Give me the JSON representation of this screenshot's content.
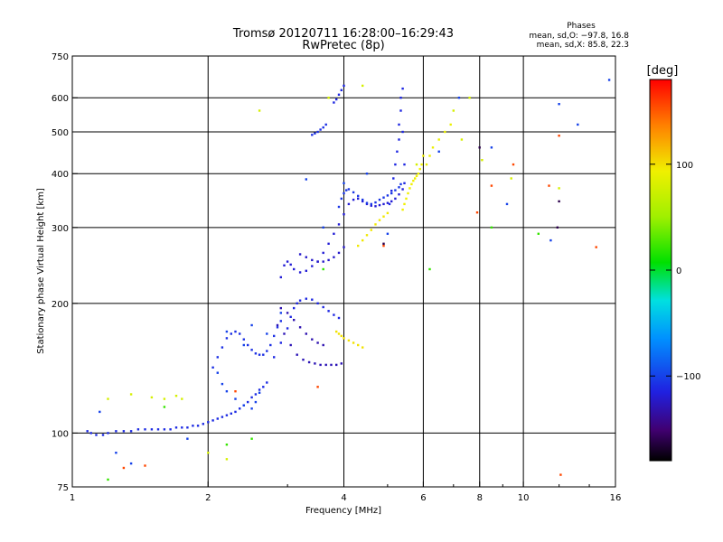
{
  "chart_data": {
    "type": "scatter",
    "title": "Tromsø 20120711 16:28:00–16:29:43",
    "subtitle": "RwPretec (8p)",
    "xlabel": "Frequency [MHz]",
    "ylabel": "Stationary phase Virtual Height [km]",
    "x_scale": "log",
    "y_scale": "log",
    "xlim": [
      1,
      16
    ],
    "ylim": [
      75,
      750
    ],
    "x_ticks": [
      1,
      2,
      4,
      6,
      8,
      10,
      16
    ],
    "x_tick_labels": [
      "1",
      "2",
      "4",
      "6",
      "8",
      "10",
      "16"
    ],
    "x_gridlines": [
      2,
      4,
      6,
      8,
      10
    ],
    "y_ticks": [
      75,
      100,
      200,
      300,
      400,
      500,
      600,
      750
    ],
    "y_tick_labels": [
      "75",
      "100",
      "200",
      "300",
      "400",
      "500",
      "600",
      "750"
    ],
    "y_gridlines": [
      100,
      200,
      300,
      400,
      500,
      600
    ],
    "grid": true,
    "phases": {
      "heading": "Phases",
      "line_o": "mean, sd,O: −97.8, 16.8",
      "line_x": "mean, sd,X:  85.8, 22.3"
    },
    "colorbar": {
      "label": "[deg]",
      "min": -180,
      "max": 180,
      "ticks": [
        100,
        0,
        -100
      ],
      "tick_labels": [
        "100",
        "0",
        "−100"
      ],
      "colormap": "rainbow"
    },
    "series": [
      {
        "phase": -110,
        "x": [
          1.08,
          1.1,
          1.13,
          1.17,
          1.2,
          1.25,
          1.3,
          1.35,
          1.4,
          1.45,
          1.5,
          1.55,
          1.6,
          1.65,
          1.7,
          1.75,
          1.8,
          1.85,
          1.9,
          1.95,
          2.0,
          2.05,
          2.1,
          2.15,
          2.2,
          2.25,
          2.3,
          2.35,
          2.4,
          2.45,
          2.5,
          2.55,
          2.6,
          2.65,
          2.7
        ],
        "y": [
          101,
          100,
          99,
          99,
          100,
          101,
          101,
          101,
          102,
          102,
          102,
          102,
          102,
          102,
          103,
          103,
          103,
          104,
          104,
          105,
          106,
          107,
          108,
          109,
          110,
          111,
          112,
          114,
          116,
          118,
          121,
          123,
          126,
          128,
          131
        ]
      },
      {
        "phase": -108,
        "x": [
          2.05,
          2.1,
          2.15,
          2.2,
          2.25,
          2.3,
          2.35,
          2.4,
          2.45,
          2.5,
          2.55,
          2.6,
          2.65,
          2.7,
          2.75,
          2.8,
          2.85,
          2.9
        ],
        "y": [
          142,
          150,
          158,
          166,
          170,
          172,
          170,
          165,
          160,
          156,
          153,
          152,
          152,
          155,
          160,
          168,
          176,
          182
        ]
      },
      {
        "phase": -100,
        "x": [
          2.1,
          2.15,
          2.2,
          2.3,
          2.4,
          2.5,
          2.55,
          2.6
        ],
        "y": [
          138,
          130,
          125,
          120,
          116,
          114,
          118,
          124
        ]
      },
      {
        "phase": -112,
        "x": [
          2.8,
          2.9,
          3.0,
          3.05,
          3.1,
          3.15,
          3.2,
          3.3,
          3.4,
          3.5,
          3.6,
          3.7,
          3.8,
          3.9
        ],
        "y": [
          150,
          162,
          175,
          186,
          195,
          200,
          203,
          205,
          204,
          200,
          196,
          192,
          188,
          185
        ]
      },
      {
        "phase": -128,
        "x": [
          2.85,
          2.95,
          3.05,
          3.15,
          3.25,
          3.35,
          3.45,
          3.55,
          3.65,
          3.75,
          3.85,
          3.95
        ],
        "y": [
          178,
          170,
          160,
          152,
          148,
          146,
          145,
          144,
          144,
          144,
          144,
          145
        ]
      },
      {
        "phase": -130,
        "x": [
          2.9,
          3.0,
          3.1,
          3.2,
          3.3,
          3.4,
          3.5,
          3.6
        ],
        "y": [
          195,
          190,
          183,
          176,
          170,
          165,
          162,
          160
        ]
      },
      {
        "phase": -118,
        "x": [
          2.9,
          2.95,
          3.0,
          3.05,
          3.1,
          3.2,
          3.3,
          3.4,
          3.5,
          3.6,
          3.7,
          3.8,
          3.9,
          4.0,
          4.1,
          4.2,
          4.3,
          4.4,
          4.5,
          4.6,
          4.7,
          4.8,
          4.9,
          5.0,
          5.1,
          5.2,
          5.3,
          5.4
        ],
        "y": [
          230,
          245,
          250,
          246,
          240,
          236,
          238,
          244,
          250,
          262,
          275,
          290,
          305,
          322,
          340,
          348,
          350,
          345,
          340,
          337,
          336,
          338,
          340,
          342,
          345,
          350,
          358,
          368
        ]
      },
      {
        "phase": -105,
        "x": [
          3.9,
          3.95,
          4.0,
          4.05,
          4.1,
          4.2,
          4.3,
          4.4,
          4.5,
          4.6,
          4.7,
          4.8,
          4.9,
          5.0,
          5.1,
          5.2,
          5.3,
          5.35
        ],
        "y": [
          335,
          350,
          360,
          366,
          368,
          362,
          355,
          348,
          342,
          340,
          343,
          348,
          352,
          356,
          360,
          366,
          372,
          378
        ]
      },
      {
        "phase": -122,
        "x": [
          3.2,
          3.3,
          3.4,
          3.5,
          3.6,
          3.7,
          3.8,
          3.9,
          4.0
        ],
        "y": [
          260,
          256,
          252,
          250,
          250,
          252,
          256,
          262,
          270
        ]
      },
      {
        "phase": -112,
        "x": [
          5.05,
          5.1,
          5.15,
          5.2,
          5.25,
          5.3,
          5.3,
          5.35,
          5.35,
          5.4,
          5.4,
          5.45,
          5.45
        ],
        "y": [
          340,
          365,
          390,
          420,
          450,
          480,
          520,
          560,
          600,
          630,
          500,
          420,
          380
        ]
      },
      {
        "phase": -108,
        "x": [
          3.4,
          3.45,
          3.5,
          3.55,
          3.6,
          3.65
        ],
        "y": [
          492,
          496,
          500,
          506,
          512,
          520
        ]
      },
      {
        "phase": -112,
        "x": [
          3.8,
          3.85,
          3.9,
          3.95,
          4.0
        ],
        "y": [
          585,
          595,
          610,
          625,
          640
        ]
      },
      {
        "phase": 95,
        "x": [
          5.4,
          5.45,
          5.5,
          5.55,
          5.6,
          5.65,
          5.7,
          5.75,
          5.8,
          5.85,
          5.9,
          5.95,
          6.0
        ],
        "y": [
          330,
          340,
          350,
          360,
          370,
          378,
          385,
          390,
          395,
          400,
          410,
          420,
          440
        ]
      },
      {
        "phase": 98,
        "x": [
          4.3,
          4.4,
          4.5,
          4.6,
          4.7,
          4.8,
          4.9,
          5.0
        ],
        "y": [
          272,
          280,
          288,
          296,
          305,
          312,
          318,
          324
        ]
      },
      {
        "phase": 100,
        "x": [
          3.85,
          3.9,
          3.95,
          4.0,
          4.1,
          4.2,
          4.3,
          4.4
        ],
        "y": [
          172,
          170,
          168,
          166,
          164,
          162,
          160,
          158
        ]
      },
      {
        "phase": 92,
        "x": [
          6.1,
          6.2,
          6.3,
          6.5,
          6.7,
          6.9
        ],
        "y": [
          420,
          440,
          460,
          480,
          500,
          520
        ]
      },
      {
        "phase": -100,
        "x": [
          1.15,
          1.25,
          1.35,
          1.8,
          2.2,
          2.4,
          2.5,
          2.7,
          2.9,
          3.3,
          3.6,
          4.0,
          4.5,
          5.0,
          6.5,
          7.2,
          8.5,
          9.2,
          11.5,
          12.0,
          13.2,
          15.5
        ],
        "y": [
          112,
          90,
          85,
          97,
          172,
          160,
          178,
          170,
          190,
          388,
          300,
          380,
          400,
          290,
          450,
          600,
          460,
          340,
          280,
          580,
          520,
          660
        ]
      },
      {
        "phase": 80,
        "x": [
          1.2,
          1.35,
          1.5,
          1.6,
          1.7,
          1.75,
          2.0,
          2.2,
          2.6,
          3.7,
          4.4,
          5.8,
          7.0,
          7.3,
          7.6,
          8.1,
          9.4,
          12.0
        ],
        "y": [
          120,
          123,
          121,
          120,
          122,
          120,
          90,
          87,
          560,
          600,
          640,
          420,
          560,
          480,
          600,
          430,
          390,
          370
        ]
      },
      {
        "phase": 155,
        "x": [
          1.3,
          1.45,
          2.3,
          3.5,
          4.9,
          7.9,
          8.5,
          9.5,
          12.0,
          14.5,
          11.4,
          12.1
        ],
        "y": [
          83,
          84,
          125,
          128,
          272,
          325,
          375,
          420,
          490,
          270,
          375,
          80
        ]
      },
      {
        "phase": 20,
        "x": [
          1.2,
          1.6,
          2.2,
          2.5,
          3.6,
          6.2,
          8.5,
          10.8
        ],
        "y": [
          78,
          115,
          94,
          97,
          240,
          240,
          300,
          290
        ]
      },
      {
        "phase": -160,
        "x": [
          4.9,
          8.0,
          11.9,
          12.0
        ],
        "y": [
          275,
          460,
          300,
          345
        ]
      }
    ]
  }
}
